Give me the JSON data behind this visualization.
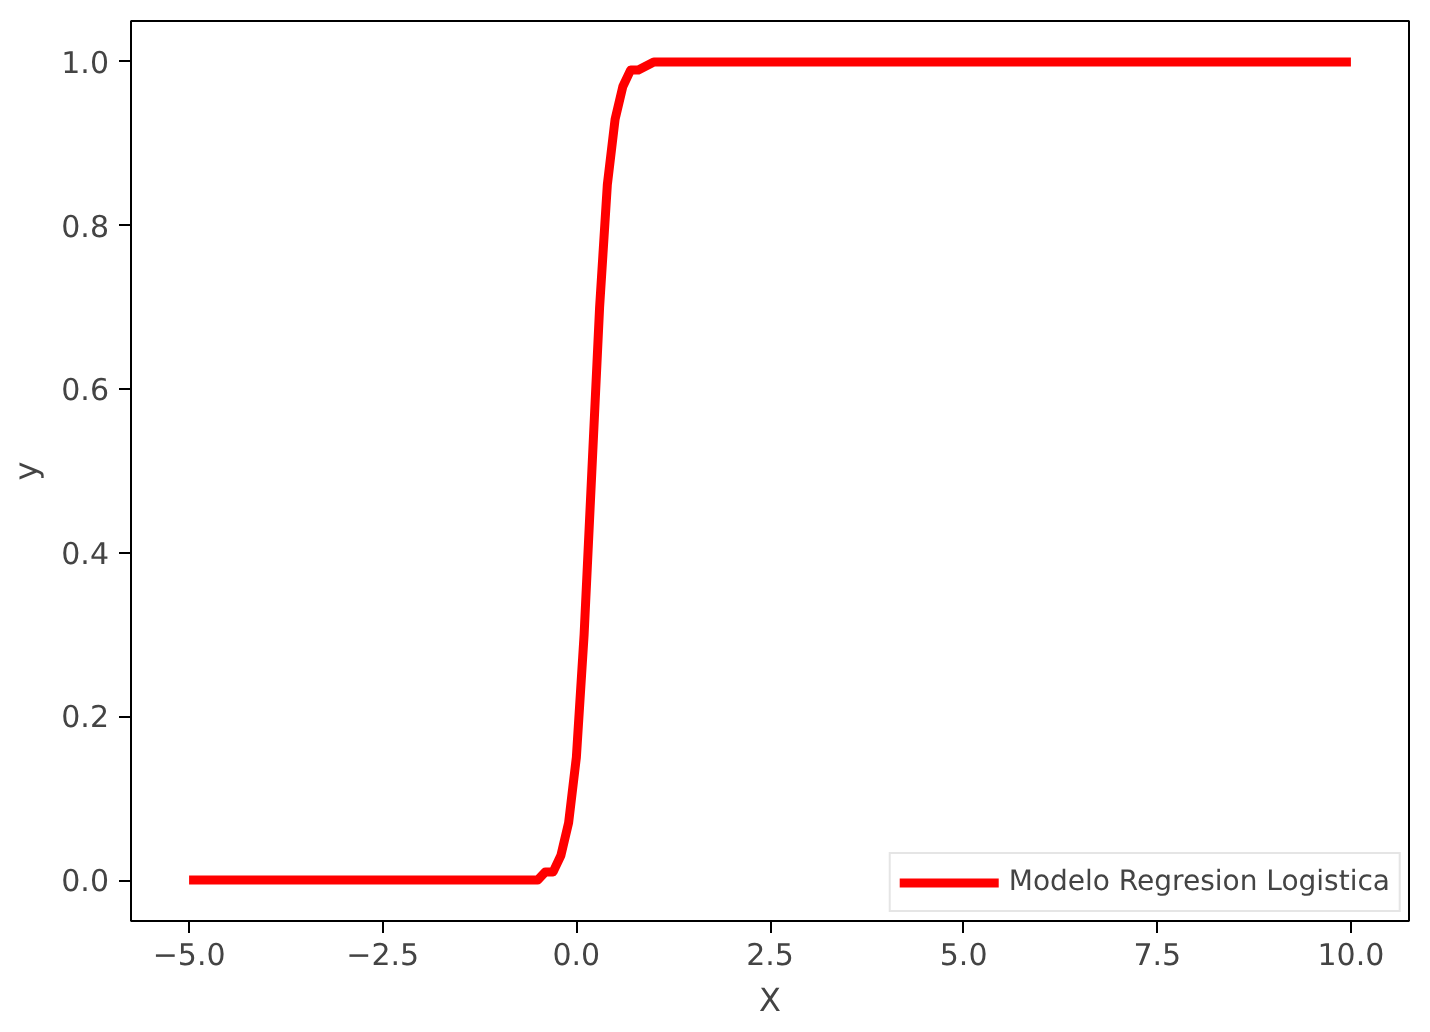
{
  "chart_data": {
    "type": "line",
    "xlabel": "X",
    "ylabel": "y",
    "x": [
      -5,
      -2.5,
      -1,
      -0.5,
      -0.4,
      -0.3,
      -0.2,
      -0.1,
      0,
      0.1,
      0.2,
      0.3,
      0.4,
      0.5,
      0.6,
      0.7,
      0.8,
      1.0,
      1.2,
      1.5,
      2.5,
      5,
      10
    ],
    "series": [
      {
        "name": "Modelo Regresion Logistica",
        "color": "#ff0000",
        "values": [
          0,
          0,
          0,
          0,
          0.01,
          0.01,
          0.03,
          0.07,
          0.15,
          0.3,
          0.5,
          0.7,
          0.85,
          0.93,
          0.97,
          0.99,
          0.99,
          1,
          1,
          1,
          1,
          1,
          1
        ]
      }
    ],
    "xlim": [
      -5.75,
      10.75
    ],
    "ylim": [
      -0.05,
      1.05
    ],
    "xticks": [
      {
        "value": -5,
        "label": "−5.0"
      },
      {
        "value": -2.5,
        "label": "−2.5"
      },
      {
        "value": 0,
        "label": "0.0"
      },
      {
        "value": 2.5,
        "label": "2.5"
      },
      {
        "value": 5,
        "label": "5.0"
      },
      {
        "value": 7.5,
        "label": "7.5"
      },
      {
        "value": 10,
        "label": "10.0"
      }
    ],
    "yticks": [
      {
        "value": 0,
        "label": "0.0"
      },
      {
        "value": 0.2,
        "label": "0.2"
      },
      {
        "value": 0.4,
        "label": "0.4"
      },
      {
        "value": 0.6,
        "label": "0.6"
      },
      {
        "value": 0.8,
        "label": "0.8"
      },
      {
        "value": 1,
        "label": "1.0"
      }
    ],
    "legend": "bottom right",
    "grid": false,
    "line_style": "solid"
  }
}
